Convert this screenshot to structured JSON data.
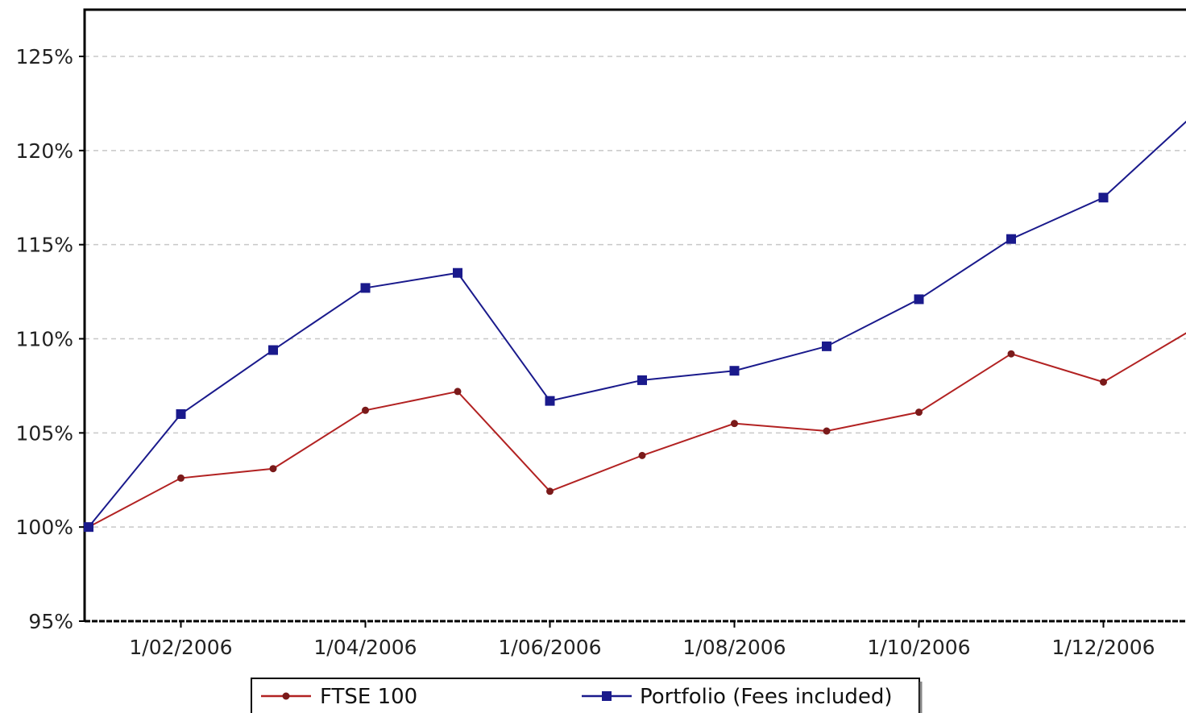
{
  "chart_data": {
    "type": "line",
    "title": "",
    "xlabel": "",
    "ylabel": "",
    "x": [
      "1/01/2006",
      "1/02/2006",
      "1/03/2006",
      "1/04/2006",
      "1/05/2006",
      "1/06/2006",
      "1/07/2006",
      "1/08/2006",
      "1/09/2006",
      "1/10/2006",
      "1/11/2006",
      "1/12/2006",
      "1/01/2007"
    ],
    "x_ticks": [
      "1/02/2006",
      "1/04/2006",
      "1/06/2006",
      "1/08/2006",
      "1/10/2006",
      "1/12/2006"
    ],
    "y_ticks": [
      "95%",
      "100%",
      "105%",
      "110%",
      "115%",
      "120%",
      "125%"
    ],
    "ylim": [
      95,
      125
    ],
    "grid": "horizontal-dashed",
    "legend": "bottom",
    "series": [
      {
        "name": "FTSE 100",
        "color": "#b22222",
        "marker": "circle",
        "values": [
          100.0,
          102.6,
          103.1,
          106.2,
          107.2,
          101.9,
          103.8,
          105.5,
          105.1,
          106.1,
          109.2,
          107.7,
          110.6
        ]
      },
      {
        "name": "Portfolio (Fees included)",
        "color": "#1a1a8c",
        "marker": "square",
        "values": [
          100.0,
          106.0,
          109.4,
          112.7,
          113.5,
          106.7,
          107.8,
          108.3,
          109.6,
          112.1,
          115.3,
          117.5,
          122.0
        ]
      }
    ]
  }
}
